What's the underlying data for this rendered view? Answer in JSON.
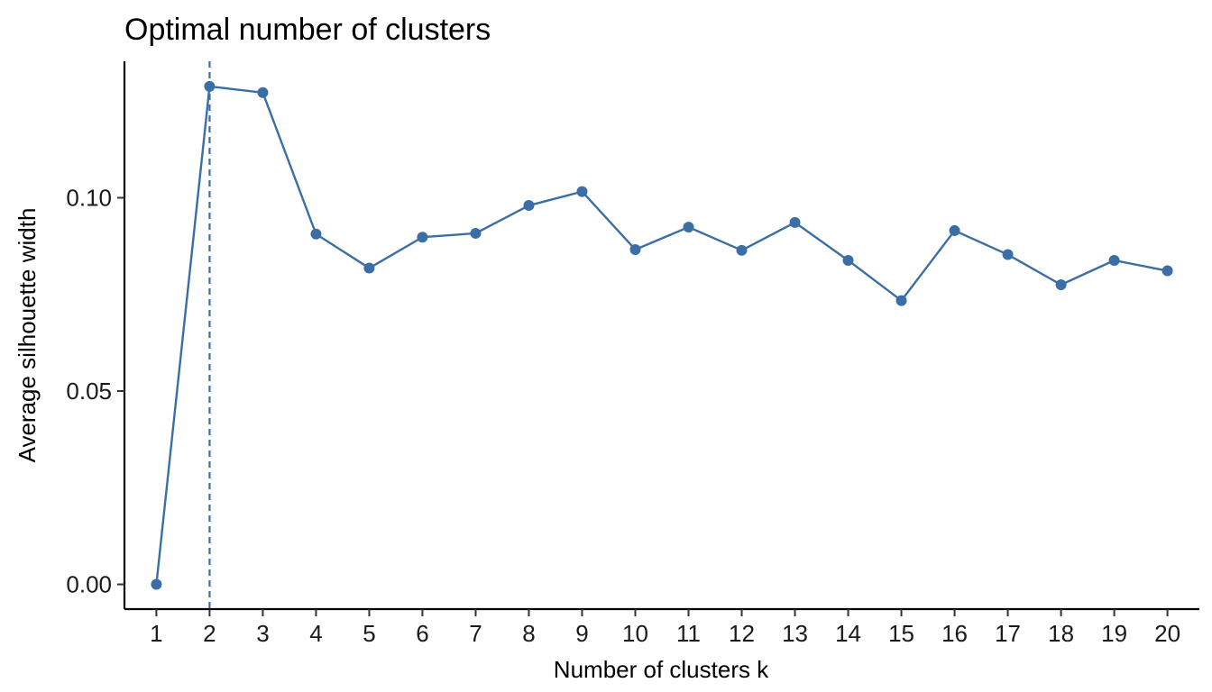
{
  "chart_data": {
    "type": "line",
    "title": "Optimal number of clusters",
    "xlabel": "Number of clusters k",
    "ylabel": "Average silhouette width",
    "x": [
      1,
      2,
      3,
      4,
      5,
      6,
      7,
      8,
      9,
      10,
      11,
      12,
      13,
      14,
      15,
      16,
      17,
      18,
      19,
      20
    ],
    "x_tick_labels": [
      "1",
      "2",
      "3",
      "4",
      "5",
      "6",
      "7",
      "8",
      "9",
      "10",
      "11",
      "12",
      "13",
      "14",
      "15",
      "16",
      "17",
      "18",
      "19",
      "20"
    ],
    "series": [
      {
        "values": [
          0.0,
          0.1288,
          0.1272,
          0.0906,
          0.0818,
          0.0898,
          0.0908,
          0.098,
          0.1016,
          0.0866,
          0.0924,
          0.0864,
          0.0936,
          0.0838,
          0.0734,
          0.0915,
          0.0853,
          0.0775,
          0.0838,
          0.0811
        ],
        "color": "#3a6ea5"
      }
    ],
    "y_ticks": [
      0.0,
      0.05,
      0.1
    ],
    "y_tick_labels": [
      "0.00",
      "0.05",
      "0.10"
    ],
    "ylim": [
      -0.0064,
      0.1353
    ],
    "xlim": [
      0.4,
      20.6
    ],
    "optimal_k": 2,
    "optimal_line_style": "dashed",
    "grid": false,
    "legend": "none"
  }
}
